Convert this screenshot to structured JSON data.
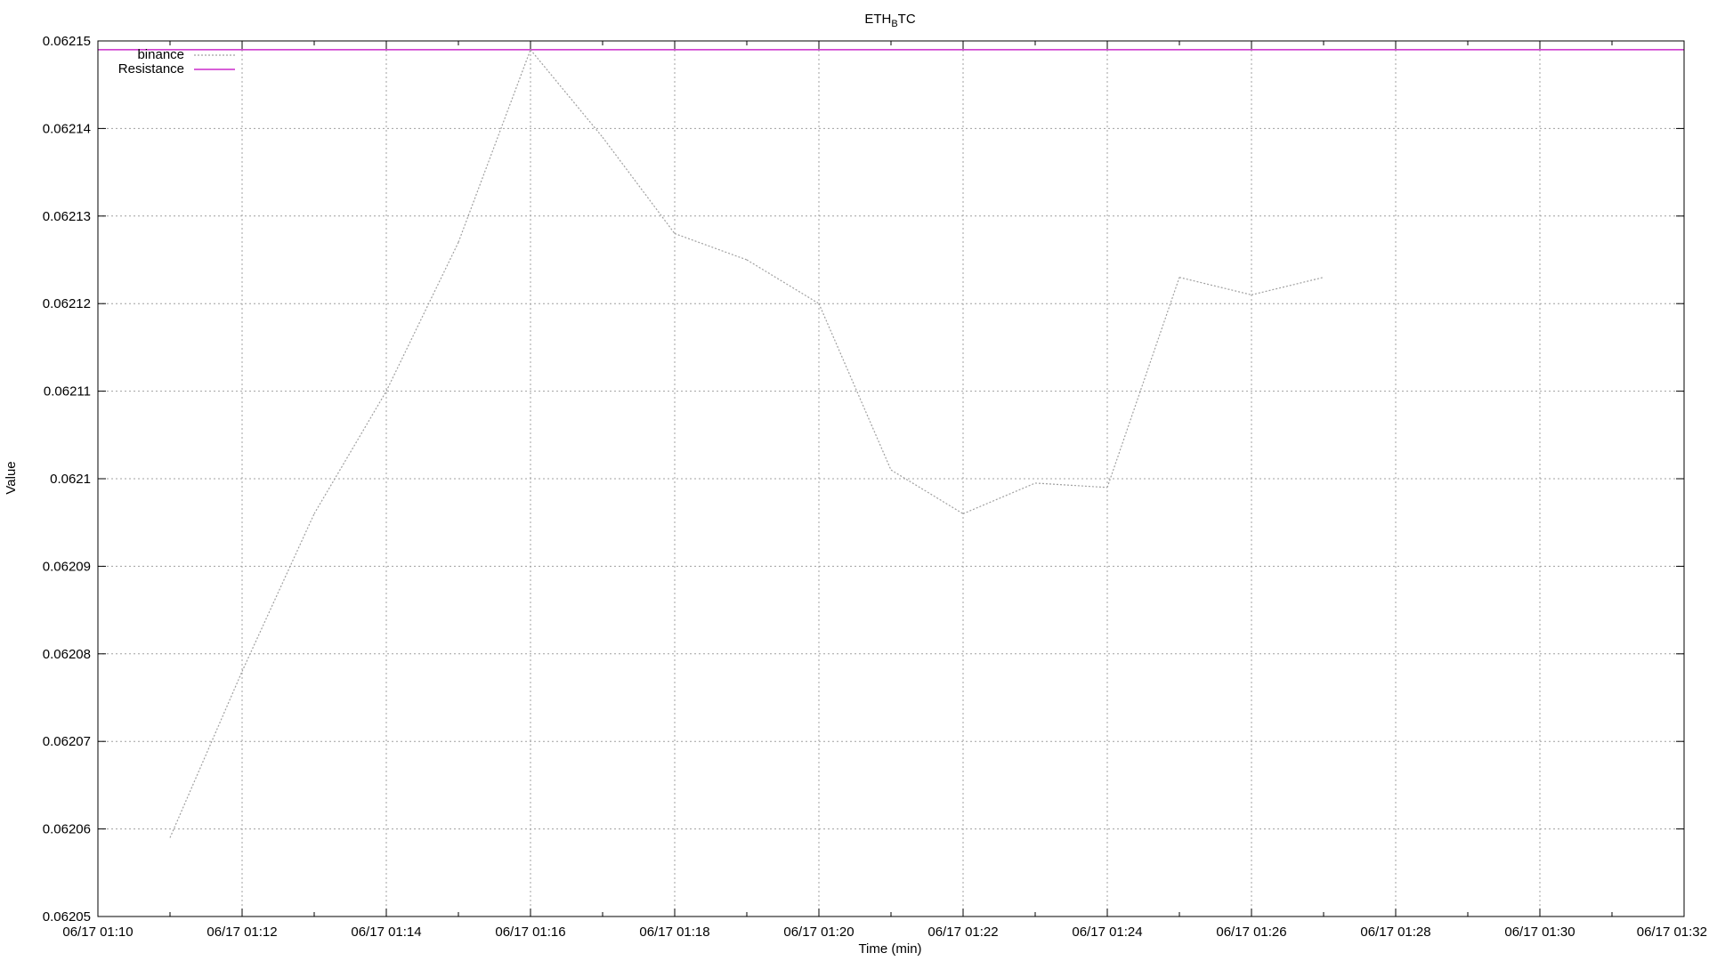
{
  "chart_data": {
    "type": "line",
    "title": "ETH",
    "title_subscript": "B",
    "title_suffix": "TC",
    "xlabel": "Time (min)",
    "ylabel": "Value",
    "x_ticks": [
      "06/17 01:10",
      "06/17 01:12",
      "06/17 01:14",
      "06/17 01:16",
      "06/17 01:18",
      "06/17 01:20",
      "06/17 01:22",
      "06/17 01:24",
      "06/17 01:26",
      "06/17 01:28",
      "06/17 01:30",
      "06/17 01:32"
    ],
    "x_tick_minutes": [
      10,
      12,
      14,
      16,
      18,
      20,
      22,
      24,
      26,
      28,
      30,
      32
    ],
    "xlim_minutes": [
      10,
      32
    ],
    "y_ticks": [
      "0.06205",
      "0.06206",
      "0.06207",
      "0.06208",
      "0.06209",
      "0.0621",
      "0.06211",
      "0.06212",
      "0.06213",
      "0.06214",
      "0.06215"
    ],
    "ylim": [
      0.06205,
      0.06215
    ],
    "grid": true,
    "legend_position": "top-left",
    "series": [
      {
        "name": "binance",
        "color": "#a0a0a0",
        "style": "dotted",
        "x": [
          "06/17 01:11",
          "06/17 01:12",
          "06/17 01:13",
          "06/17 01:14",
          "06/17 01:15",
          "06/17 01:16",
          "06/17 01:17",
          "06/17 01:18",
          "06/17 01:19",
          "06/17 01:20",
          "06/17 01:21",
          "06/17 01:22",
          "06/17 01:23",
          "06/17 01:24",
          "06/17 01:25",
          "06/17 01:26",
          "06/17 01:27"
        ],
        "x_minutes": [
          11,
          12,
          13,
          14,
          15,
          16,
          17,
          18,
          19,
          20,
          21,
          22,
          23,
          24,
          25,
          26,
          27
        ],
        "values": [
          0.062059,
          0.062078,
          0.062096,
          0.06211,
          0.062127,
          0.062149,
          0.062139,
          0.062128,
          0.062125,
          0.06212,
          0.062101,
          0.062096,
          0.0620995,
          0.062099,
          0.062123,
          0.062121,
          0.062123
        ]
      },
      {
        "name": "Resistance",
        "color": "#c000c0",
        "style": "solid",
        "constant": 0.062149
      }
    ]
  }
}
